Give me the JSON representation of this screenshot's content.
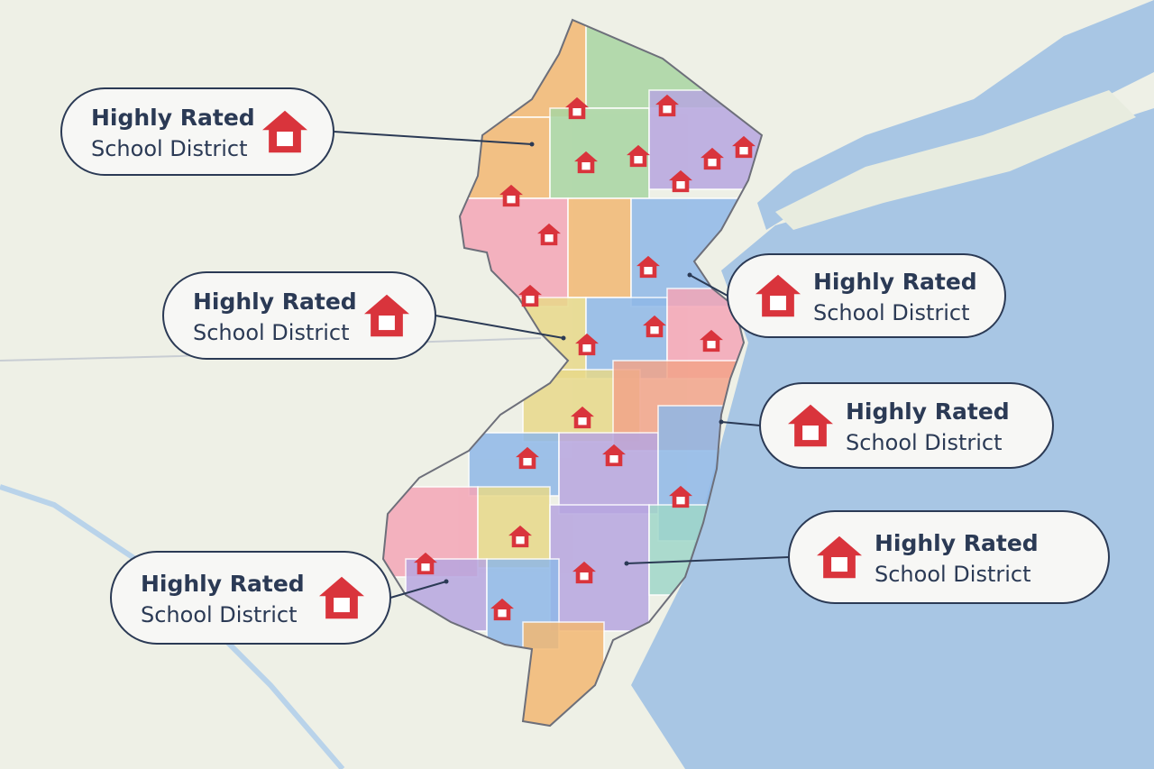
{
  "callouts": [
    {
      "title": "Highly Rated",
      "subtitle": "School District"
    },
    {
      "title": "Highly Rated",
      "subtitle": "School District"
    },
    {
      "title": "Highly Rated",
      "subtitle": "School District"
    },
    {
      "title": "Highly Rated",
      "subtitle": "School District"
    },
    {
      "title": "Highly Rated",
      "subtitle": "School District"
    },
    {
      "title": "Highly Rated",
      "subtitle": "School District"
    }
  ]
}
